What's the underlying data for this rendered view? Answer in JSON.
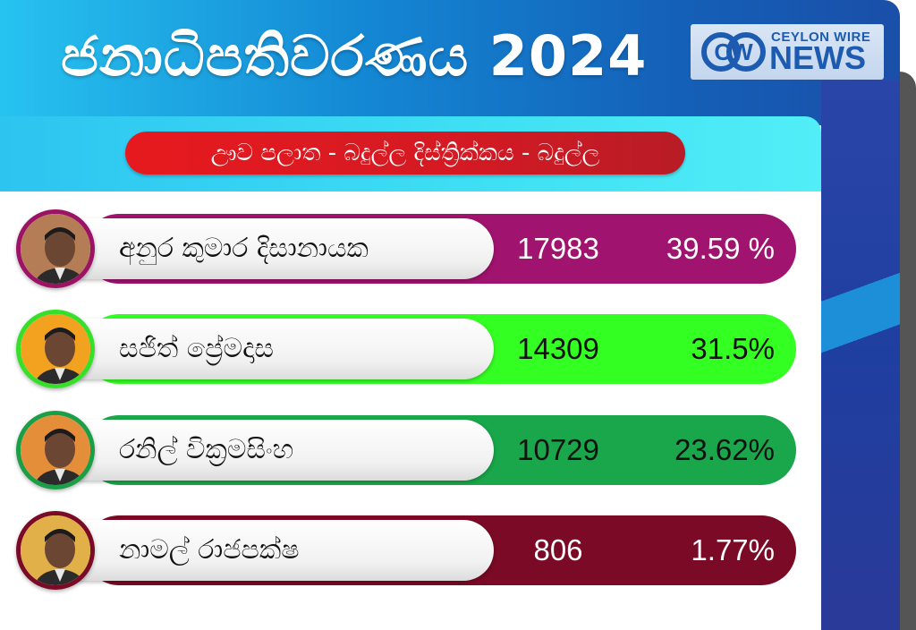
{
  "header": {
    "title": "ජනාධිපතිවරණය 2024",
    "logo": {
      "brand_top": "CEYLON WIRE",
      "brand_bottom": "NEWS",
      "mark": "CW"
    }
  },
  "region": "ඌව පලාත -  බදුල්ල දිස්ත්‍රික්කය - බදුල්ල",
  "candidates": [
    {
      "name": "අනුර කුමාර දිසානායක",
      "votes": "17983",
      "percent": "39.59 %",
      "bar_color": "#a0136e",
      "text_color": "#ffffff",
      "ring_color": "#9c1265",
      "photo_bg": "#b57d55"
    },
    {
      "name": "සජිත් ප්‍රේමදාස",
      "votes": "14309",
      "percent": "31.5%",
      "bar_color": "#33ff22",
      "text_color": "#111111",
      "ring_color": "#36e02a",
      "photo_bg": "#f2a21f"
    },
    {
      "name": "රනිල් වික්‍රමසිංහ",
      "votes": "10729",
      "percent": "23.62%",
      "bar_color": "#1aa64a",
      "text_color": "#111111",
      "ring_color": "#1a9e46",
      "photo_bg": "#e58e3a"
    },
    {
      "name": "නාමල් රාජපක්ෂ",
      "votes": "806",
      "percent": "1.77%",
      "bar_color": "#7a0a25",
      "text_color": "#ffffff",
      "ring_color": "#7a0a25",
      "photo_bg": "#e2b048"
    }
  ]
}
